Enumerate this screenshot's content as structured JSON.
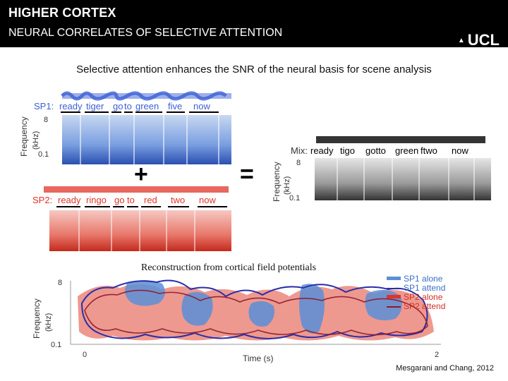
{
  "header": {
    "title": "HIGHER CORTEX",
    "subtitle": "NEURAL CORRELATES OF SELECTIVE ATTENTION",
    "logo": "UCL"
  },
  "main": {
    "headline": "Selective attention enhances the SNR of the neural basis for scene analysis",
    "reconstruction_caption": "Reconstruction from cortical field potentials",
    "citation": "Mesgarani and Chang, 2012"
  },
  "figure": {
    "sp1": {
      "label": "SP1:",
      "words": [
        "ready",
        "tiger",
        "go",
        "to",
        "green",
        "five",
        "now"
      ],
      "color": "#3b5fd6"
    },
    "sp2": {
      "label": "SP2:",
      "words": [
        "ready",
        "ringo",
        "go",
        "to",
        "red",
        "two",
        "now"
      ],
      "color": "#e0342a"
    },
    "mix": {
      "label": "Mix:",
      "words": [
        "ready",
        "tigo",
        "gotto",
        "green",
        "ftwo",
        "now"
      ]
    },
    "operators": {
      "plus": "+",
      "equals": "="
    },
    "spectro_axis": {
      "ylabel": "Frequency",
      "yunit": "(kHz)",
      "ytop": "8",
      "ybottom": "0.1"
    },
    "recon_axis": {
      "ylabel": "Frequency",
      "yunit": "(kHz)",
      "ytop": "8",
      "ybottom": "0.1",
      "xlabel": "Time (s)",
      "xstart": "0",
      "xend": "2"
    },
    "legend": [
      {
        "label": "SP1 alone",
        "color": "#5b8fd8"
      },
      {
        "label": "SP1 attend",
        "color": "#2c2ea8"
      },
      {
        "label": "SP2 alone",
        "color": "#e0342a"
      },
      {
        "label": "SP2 attend",
        "color": "#8c1a2c"
      }
    ]
  }
}
